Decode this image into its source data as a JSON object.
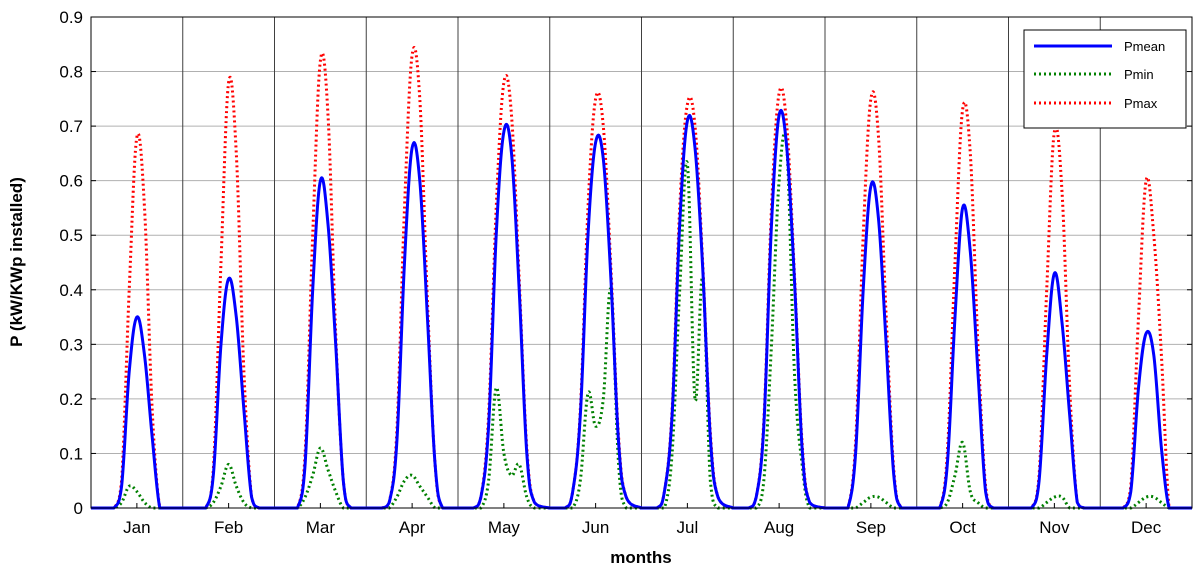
{
  "chart_data": {
    "type": "line",
    "title": "",
    "xlabel": "months",
    "ylabel": "P (kW/KWp installed)",
    "categories": [
      "Jan",
      "Feb",
      "Mar",
      "Apr",
      "May",
      "Jun",
      "Jul",
      "Aug",
      "Sep",
      "Oct",
      "Nov",
      "Dec"
    ],
    "ylim": [
      0,
      0.9
    ],
    "yticks": [
      "0",
      "0.1",
      "0.2",
      "0.3",
      "0.4",
      "0.5",
      "0.6",
      "0.7",
      "0.8",
      "0.9"
    ],
    "grid": true,
    "legend_position": "top-right",
    "colors": {
      "Pmean": "#0000ff",
      "Pmin": "#008000",
      "Pmax": "#ff0000"
    },
    "hour_axis": [
      0,
      4,
      6,
      8,
      10,
      12,
      14,
      16,
      18,
      20,
      24
    ],
    "series": [
      {
        "name": "Pmean",
        "style": "solid",
        "monthly_hourly": [
          [
            0,
            0,
            0,
            0.04,
            0.25,
            0.35,
            0.28,
            0.13,
            0,
            0,
            0
          ],
          [
            0,
            0,
            0,
            0.06,
            0.3,
            0.42,
            0.35,
            0.18,
            0.02,
            0,
            0
          ],
          [
            0,
            0,
            0,
            0.08,
            0.4,
            0.6,
            0.52,
            0.3,
            0.05,
            0,
            0
          ],
          [
            0,
            0,
            0.01,
            0.12,
            0.45,
            0.66,
            0.6,
            0.35,
            0.08,
            0,
            0
          ],
          [
            0,
            0,
            0.02,
            0.15,
            0.5,
            0.69,
            0.65,
            0.4,
            0.1,
            0.01,
            0
          ],
          [
            0,
            0,
            0.03,
            0.17,
            0.5,
            0.67,
            0.64,
            0.42,
            0.12,
            0.02,
            0
          ],
          [
            0,
            0,
            0.03,
            0.17,
            0.52,
            0.71,
            0.66,
            0.44,
            0.13,
            0.02,
            0
          ],
          [
            0,
            0,
            0.02,
            0.15,
            0.52,
            0.72,
            0.66,
            0.42,
            0.11,
            0.01,
            0
          ],
          [
            0,
            0,
            0,
            0.1,
            0.4,
            0.59,
            0.53,
            0.3,
            0.06,
            0,
            0
          ],
          [
            0,
            0,
            0,
            0.08,
            0.35,
            0.55,
            0.47,
            0.25,
            0.03,
            0,
            0
          ],
          [
            0,
            0,
            0,
            0.05,
            0.28,
            0.43,
            0.34,
            0.17,
            0.01,
            0,
            0
          ],
          [
            0,
            0,
            0,
            0.03,
            0.22,
            0.32,
            0.28,
            0.11,
            0,
            0,
            0
          ]
        ]
      },
      {
        "name": "Pmin",
        "style": "dotted",
        "monthly_hourly": [
          [
            0,
            0,
            0,
            0.01,
            0.04,
            0.03,
            0.01,
            0,
            0,
            0,
            0
          ],
          [
            0,
            0,
            0,
            0.01,
            0.04,
            0.08,
            0.04,
            0.01,
            0,
            0,
            0
          ],
          [
            0,
            0,
            0,
            0.02,
            0.06,
            0.11,
            0.07,
            0.03,
            0,
            0,
            0
          ],
          [
            0,
            0,
            0,
            0.02,
            0.05,
            0.06,
            0.04,
            0.02,
            0,
            0,
            0
          ],
          [
            0,
            0,
            0,
            0.05,
            0.22,
            0.1,
            0.06,
            0.08,
            0.02,
            0,
            0
          ],
          [
            0,
            0,
            0,
            0.05,
            0.21,
            0.15,
            0.2,
            0.4,
            0.08,
            0,
            0
          ],
          [
            0,
            0,
            0,
            0.1,
            0.4,
            0.63,
            0.2,
            0.42,
            0.05,
            0,
            0
          ],
          [
            0,
            0,
            0,
            0.05,
            0.3,
            0.6,
            0.66,
            0.25,
            0.08,
            0,
            0
          ],
          [
            0,
            0,
            0,
            0,
            0.01,
            0.02,
            0.02,
            0.01,
            0,
            0,
            0
          ],
          [
            0,
            0,
            0,
            0.01,
            0.06,
            0.12,
            0.03,
            0.01,
            0,
            0,
            0
          ],
          [
            0,
            0,
            0,
            0,
            0.01,
            0.02,
            0.02,
            0,
            0,
            0,
            0
          ],
          [
            0,
            0,
            0,
            0,
            0.01,
            0.02,
            0.02,
            0.01,
            0,
            0,
            0
          ]
        ]
      },
      {
        "name": "Pmax",
        "style": "dotted",
        "monthly_hourly": [
          [
            0,
            0,
            0,
            0.05,
            0.4,
            0.68,
            0.55,
            0.18,
            0,
            0,
            0
          ],
          [
            0,
            0,
            0,
            0.07,
            0.45,
            0.78,
            0.65,
            0.25,
            0.02,
            0,
            0
          ],
          [
            0,
            0,
            0,
            0.1,
            0.5,
            0.82,
            0.72,
            0.32,
            0.05,
            0,
            0
          ],
          [
            0,
            0,
            0.01,
            0.14,
            0.55,
            0.83,
            0.75,
            0.38,
            0.08,
            0,
            0
          ],
          [
            0,
            0,
            0.02,
            0.17,
            0.55,
            0.78,
            0.72,
            0.42,
            0.11,
            0.01,
            0
          ],
          [
            0,
            0,
            0.03,
            0.18,
            0.55,
            0.75,
            0.7,
            0.44,
            0.13,
            0.02,
            0
          ],
          [
            0,
            0,
            0.03,
            0.18,
            0.55,
            0.74,
            0.7,
            0.45,
            0.14,
            0.02,
            0
          ],
          [
            0,
            0,
            0.02,
            0.16,
            0.55,
            0.76,
            0.7,
            0.43,
            0.12,
            0.01,
            0
          ],
          [
            0,
            0,
            0,
            0.12,
            0.5,
            0.75,
            0.68,
            0.35,
            0.07,
            0,
            0
          ],
          [
            0,
            0,
            0,
            0.1,
            0.45,
            0.73,
            0.65,
            0.3,
            0.04,
            0,
            0
          ],
          [
            0,
            0,
            0,
            0.06,
            0.4,
            0.69,
            0.58,
            0.22,
            0.01,
            0,
            0
          ],
          [
            0,
            0,
            0,
            0.04,
            0.35,
            0.6,
            0.5,
            0.28,
            0,
            0,
            0
          ]
        ]
      }
    ]
  }
}
